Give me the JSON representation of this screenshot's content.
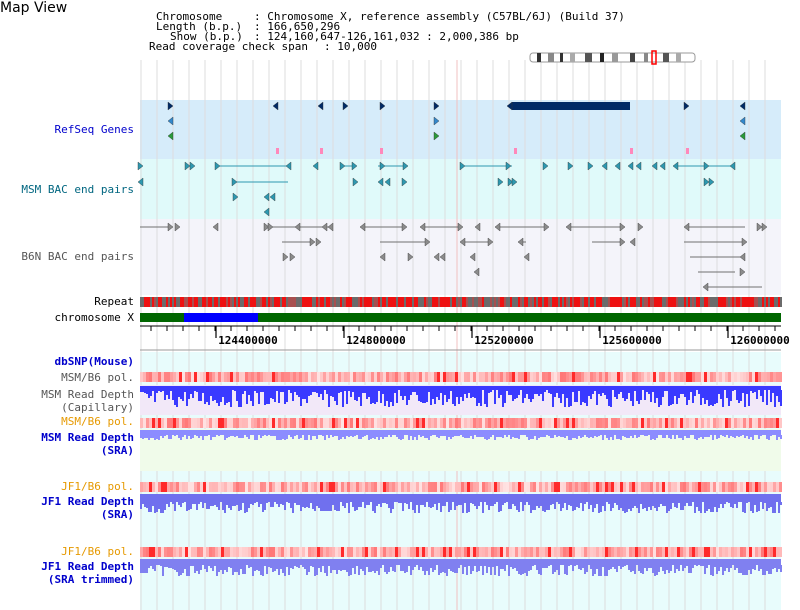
{
  "view_title": "Map View",
  "info": {
    "chromosome_key": "Chromosome",
    "chromosome_value": ": Chromosome X, reference assembly (C57BL/6J) (Build 37)",
    "length_key": "Length (b.p.)",
    "length_value": ": 166,650,296",
    "show_key": "Show (b.p.)",
    "show_value": ": 124,160,647-126,161,032 : 2,000,386 bp",
    "coverage_key": "Read coverage check span",
    "coverage_value": ": 10,000"
  },
  "tracks": {
    "refseq": "RefSeq Genes",
    "msm_bac": "MSM BAC end pairs",
    "b6n_bac": "B6N BAC end pairs",
    "repeat": "Repeat",
    "chromosome": "chromosome X",
    "dbsnp": "dbSNP(Mouse)",
    "msm_b6_pol1": "MSM/B6 pol.",
    "msm_depth_cap_1": "MSM Read Depth",
    "msm_depth_cap_2": "(Capillary)",
    "msm_b6_pol2": "MSM/B6 pol.",
    "msm_depth_sra_1": "MSM Read Depth",
    "msm_depth_sra_2": "(SRA)",
    "jf1_b6_pol1": "JF1/B6 pol.",
    "jf1_depth_sra_1": "JF1 Read Depth",
    "jf1_depth_sra_2": "(SRA)",
    "jf1_b6_pol2": "JF1/B6 pol.",
    "jf1_depth_trim_1": "JF1 Read Depth",
    "jf1_depth_trim_2": "(SRA trimmed)"
  },
  "ruler": {
    "ticks": [
      "124400000",
      "124800000",
      "125200000",
      "125600000",
      "126000000"
    ]
  },
  "colors": {
    "refseq_bg": "#d6ecfa",
    "msm_bg": "#e0fafa",
    "b6n_bg": "#f4f4fa",
    "gene_dark": "#002a66",
    "msm_arrow": "#2e98b0",
    "b6n_arrow": "#8c8c8c",
    "chrom_green": "#006600",
    "chrom_blue": "#0000ff",
    "pol_red": "#ff3333",
    "depth_blue": "#3a3aff",
    "depth_light": "#8c8cff",
    "label_blue": "#0000cc",
    "label_orange": "#e69900",
    "label_teal": "#006680",
    "label_gray": "#555555"
  }
}
